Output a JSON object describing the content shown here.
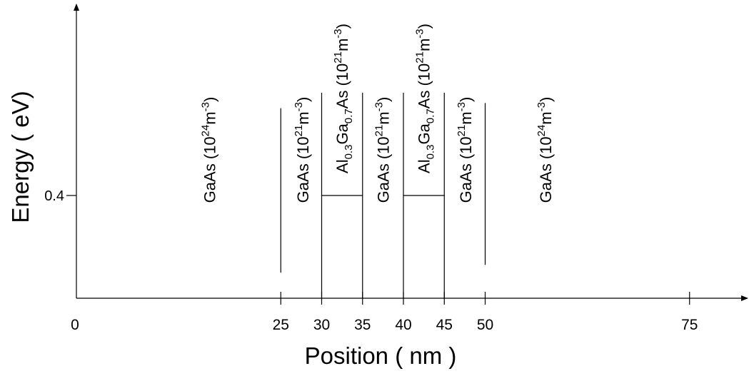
{
  "chart_data": {
    "type": "band-diagram",
    "xlabel": "Position ( nm )",
    "ylabel": "Energy ( eV)",
    "x_ticks": [
      "0",
      "25",
      "30",
      "35",
      "40",
      "45",
      "50",
      "75"
    ],
    "y_ticks": [
      "0.4"
    ],
    "xlim": [
      0,
      85
    ],
    "ylim": [
      0,
      0.8
    ],
    "barriers": [
      {
        "x_start": 30,
        "x_end": 35,
        "height": 0.4
      },
      {
        "x_start": 40,
        "x_end": 45,
        "height": 0.4
      }
    ],
    "regions": [
      {
        "x_center": 16.3,
        "material": "GaAs",
        "doping": "(10",
        "exp": "24",
        "unit": "m",
        "unit_exp": "-3",
        "close": ")"
      },
      {
        "x_center": 27.7,
        "material": "GaAs",
        "doping": "(10",
        "exp": "21",
        "unit": "m",
        "unit_exp": "-3",
        "close": ")"
      },
      {
        "x_center": 32.5,
        "material": "Al",
        "sub1": "0.3",
        "mat2": "Ga",
        "sub2": "0.7",
        "mat3": "As",
        "doping": " (10",
        "exp": "21",
        "unit": "m",
        "unit_exp": "-3",
        "close": ")"
      },
      {
        "x_center": 37.5,
        "material": "GaAs",
        "doping": "(10",
        "exp": "21",
        "unit": "m",
        "unit_exp": "-3",
        "close": ")"
      },
      {
        "x_center": 42.5,
        "material": "Al",
        "sub1": "0.3",
        "mat2": "Ga",
        "sub2": "0.7",
        "mat3": "As",
        "doping": " (10",
        "exp": "21",
        "unit": "m",
        "unit_exp": "-3",
        "close": ")"
      },
      {
        "x_center": 47.6,
        "material": "GaAs",
        "doping": "(10",
        "exp": "21",
        "unit": "m",
        "unit_exp": "-3",
        "close": ")"
      },
      {
        "x_center": 57.4,
        "material": "GaAs",
        "doping": "(10",
        "exp": "24",
        "unit": "m",
        "unit_exp": "-3",
        "close": ")"
      }
    ],
    "dividers": [
      {
        "x": 25,
        "from": 0.1,
        "to": 0.74
      },
      {
        "x": 30,
        "from": 0.4,
        "to": 0.8
      },
      {
        "x": 35,
        "from": 0.4,
        "to": 0.8
      },
      {
        "x": 40,
        "from": 0.4,
        "to": 0.8
      },
      {
        "x": 45,
        "from": 0.4,
        "to": 0.8
      },
      {
        "x": 50,
        "from": 0.13,
        "to": 0.76
      }
    ]
  }
}
